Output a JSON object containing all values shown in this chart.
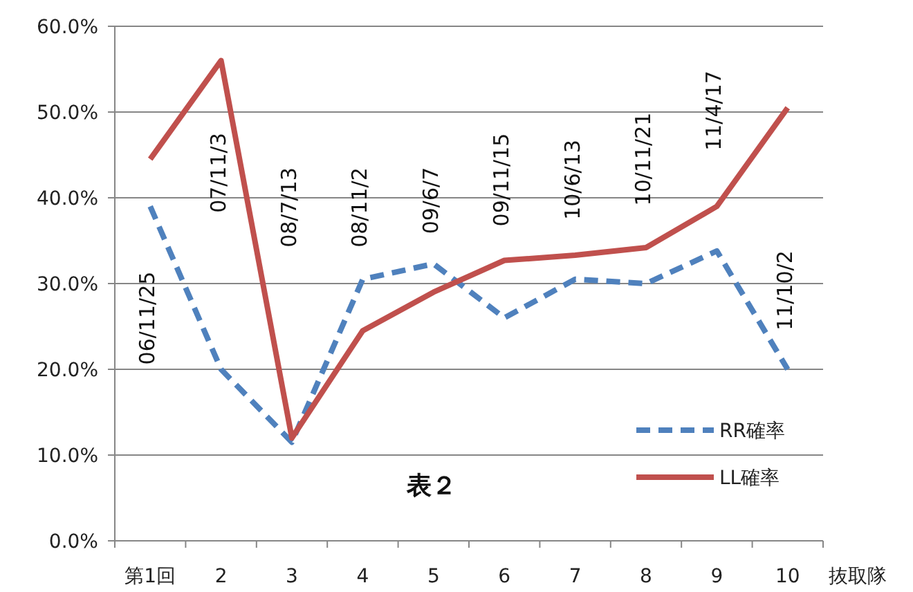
{
  "chart_data": {
    "type": "line",
    "categories": [
      "第1回",
      "2",
      "3",
      "4",
      "5",
      "6",
      "7",
      "8",
      "9",
      "10"
    ],
    "xlabel": "抜取隊",
    "series": [
      {
        "name": "RR確率",
        "color": "#4f81bd",
        "line_style": "dashed",
        "values": [
          39,
          20,
          11.5,
          30.5,
          32.3,
          26,
          30.5,
          30,
          33.8,
          20
        ]
      },
      {
        "name": "LL確率",
        "color": "#c0504d",
        "line_style": "solid",
        "values": [
          44.5,
          56,
          12,
          24.5,
          29,
          32.7,
          33.3,
          34.2,
          39,
          50.5
        ]
      }
    ],
    "ylim": [
      0,
      60
    ],
    "yticks": [
      {
        "value": 0,
        "label": "0.0%"
      },
      {
        "value": 10,
        "label": "10.0%"
      },
      {
        "value": 20,
        "label": "20.0%"
      },
      {
        "value": 30,
        "label": "30.0%"
      },
      {
        "value": 40,
        "label": "40.0%"
      },
      {
        "value": 50,
        "label": "50.0%"
      },
      {
        "value": 60,
        "label": "60.0%"
      }
    ],
    "grid": "y",
    "legend": "bottom right",
    "marker": "none",
    "annotations": [
      "06/11/25",
      "07/11/3",
      "08/7/13",
      "08/11/2",
      "09/6/7",
      "09/11/15",
      "10/6/13",
      "10/11/21",
      "11/4/17",
      "11/10/2",
      "表２"
    ]
  }
}
